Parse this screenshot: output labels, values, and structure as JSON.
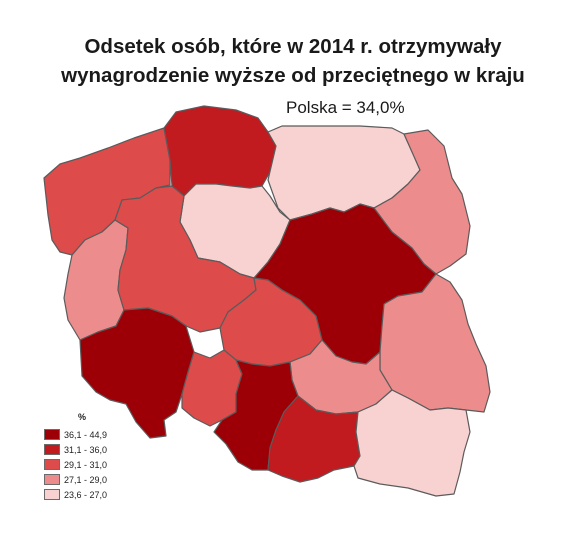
{
  "title_line1": "Odsetek osób, które w 2014 r. otrzymywały",
  "title_line2": "wynagrodzenie wyższe od przeciętnego w kraju",
  "subtitle": "Polska = 34,0%",
  "legend": {
    "title": "%",
    "classes": [
      {
        "label": "36,1 - 44,9",
        "color": "#9c0006"
      },
      {
        "label": "31,1 - 36,0",
        "color": "#c11a1f"
      },
      {
        "label": "29,1 - 31,0",
        "color": "#dd4b4b"
      },
      {
        "label": "27,1 - 29,0",
        "color": "#ec8c8c"
      },
      {
        "label": "23,6 - 27,0",
        "color": "#f8d1d1"
      }
    ]
  },
  "regions": [
    {
      "id": "pomorskie",
      "class": 1
    },
    {
      "id": "zachodniopomorskie",
      "class": 2
    },
    {
      "id": "warminsko-mazurskie",
      "class": 4
    },
    {
      "id": "podlaskie",
      "class": 3
    },
    {
      "id": "kujawsko-pomorskie",
      "class": 4
    },
    {
      "id": "wielkopolskie",
      "class": 2
    },
    {
      "id": "lubuskie",
      "class": 3
    },
    {
      "id": "mazowieckie",
      "class": 0
    },
    {
      "id": "lodzkie",
      "class": 2
    },
    {
      "id": "dolnoslaskie",
      "class": 0
    },
    {
      "id": "opolskie",
      "class": 2
    },
    {
      "id": "slaskie",
      "class": 0
    },
    {
      "id": "malopolskie",
      "class": 1
    },
    {
      "id": "swietokrzyskie",
      "class": 3
    },
    {
      "id": "lubelskie",
      "class": 3
    },
    {
      "id": "podkarpackie",
      "class": 4
    }
  ]
}
